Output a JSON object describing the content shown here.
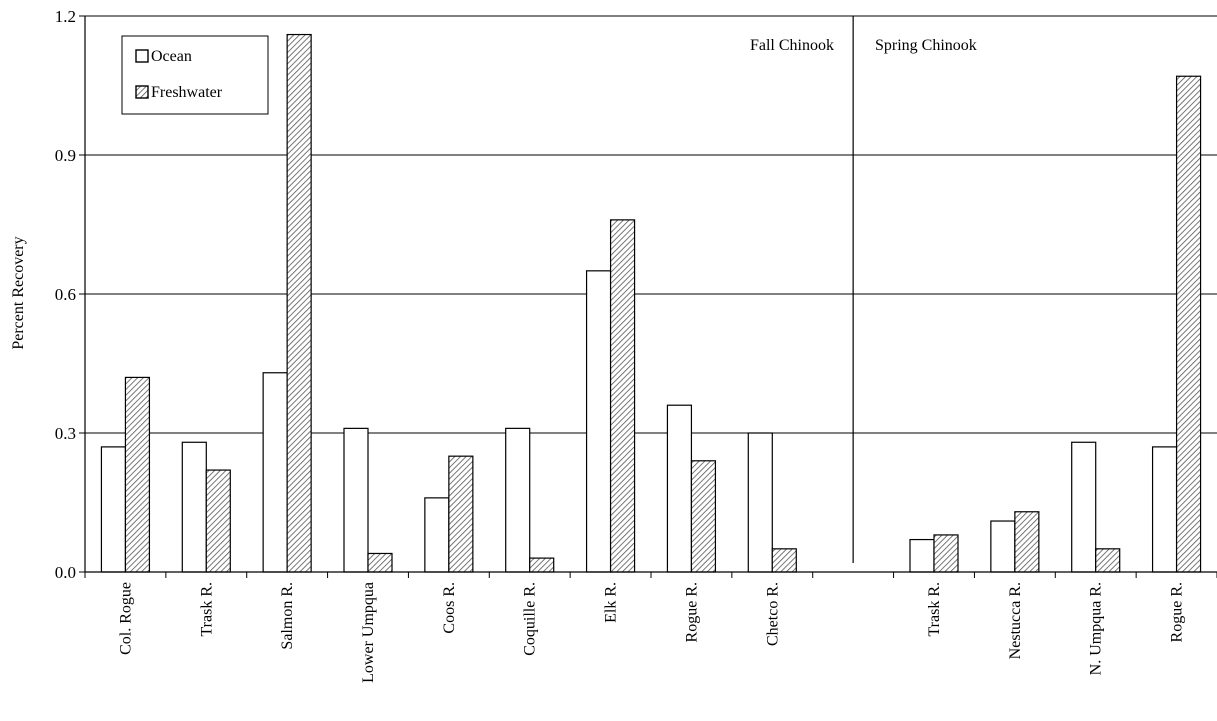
{
  "chart_data": {
    "type": "bar",
    "title": "",
    "xlabel": "",
    "ylabel": "Percent Recovery",
    "ylim": [
      0,
      1.2
    ],
    "yticks": [
      "0.0",
      "0.3",
      "0.6",
      "0.9",
      "1.2"
    ],
    "grid": true,
    "legend_position": "top-left",
    "groups": [
      {
        "label": "Fall Chinook",
        "categories": [
          "Col. Rogue",
          "Trask R.",
          "Salmon R.",
          "Lower Umpqua",
          "Coos R.",
          "Coquille R.",
          "Elk R.",
          "Rogue R.",
          "Chetco R."
        ]
      },
      {
        "label": "Spring Chinook",
        "categories": [
          "Trask R.",
          "Nestucca R.",
          "N. Umpqua R.",
          "Rogue R."
        ]
      }
    ],
    "series": [
      {
        "name": "Ocean",
        "fill": "#ffffff",
        "values": [
          0.27,
          0.28,
          0.43,
          0.31,
          0.16,
          0.31,
          0.65,
          0.36,
          0.3,
          0.07,
          0.11,
          0.28,
          0.27
        ]
      },
      {
        "name": "Freshwater",
        "fill": "hatched",
        "values": [
          0.42,
          0.22,
          1.16,
          0.04,
          0.25,
          0.03,
          0.76,
          0.24,
          0.05,
          0.08,
          0.13,
          0.05,
          1.07
        ]
      }
    ]
  }
}
